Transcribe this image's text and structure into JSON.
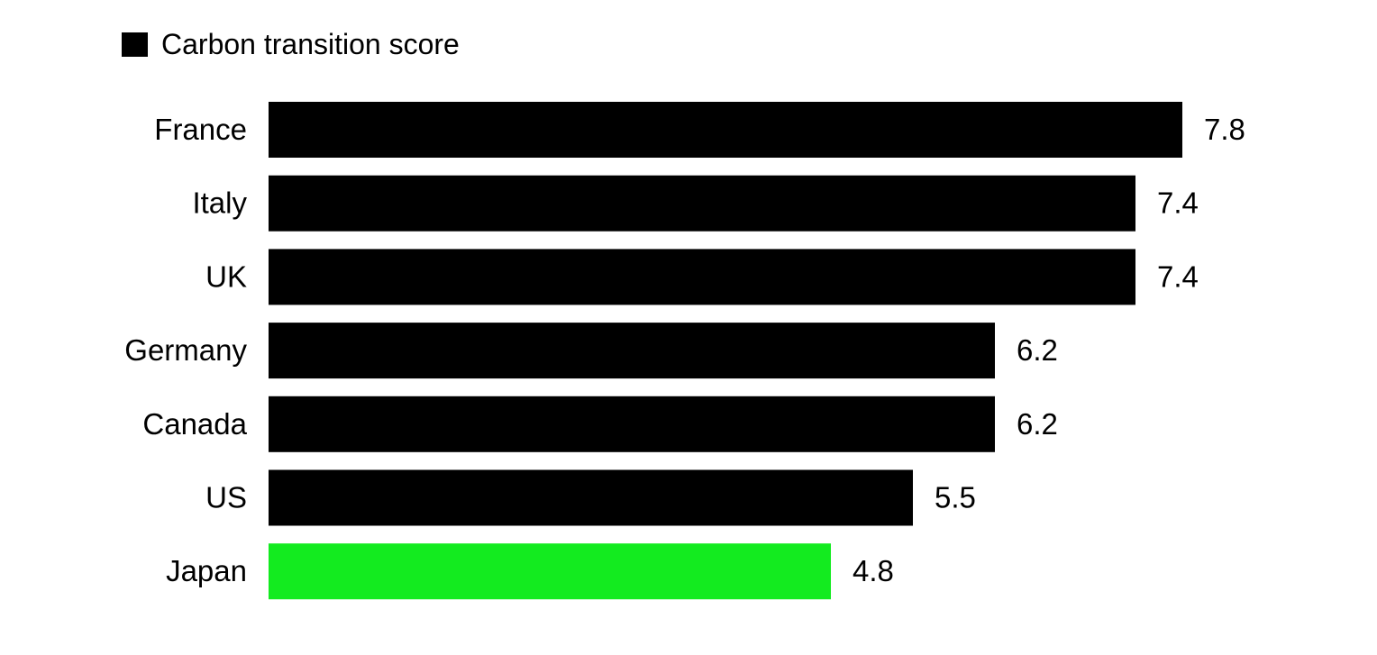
{
  "legend": {
    "label": "Carbon transition score",
    "color": "#000000"
  },
  "chart_data": {
    "type": "bar",
    "orientation": "horizontal",
    "series": [
      {
        "name": "Carbon transition score",
        "values": [
          7.8,
          7.4,
          7.4,
          6.2,
          6.2,
          5.5,
          4.8
        ]
      }
    ],
    "categories": [
      "France",
      "Italy",
      "UK",
      "Germany",
      "Canada",
      "US",
      "Japan"
    ],
    "data_labels": [
      "7.8",
      "7.4",
      "7.4",
      "6.2",
      "6.2",
      "5.5",
      "4.8"
    ],
    "bar_colors": [
      "#000000",
      "#000000",
      "#000000",
      "#000000",
      "#000000",
      "#000000",
      "#13eb1f"
    ],
    "xlim": [
      0,
      7.8
    ],
    "grid": false,
    "legend_position": "top-left"
  }
}
